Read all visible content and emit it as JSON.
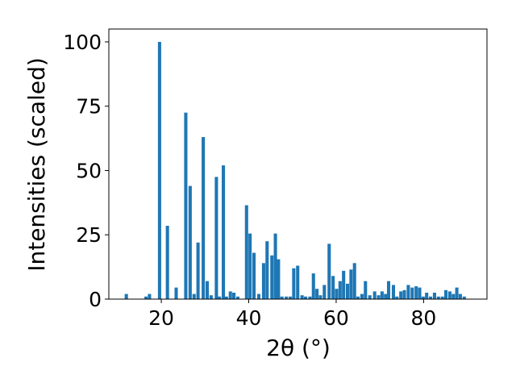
{
  "chart_data": {
    "type": "bar",
    "title": "",
    "xlabel": "2θ (°)",
    "ylabel": "Intensities (scaled)",
    "xlim": [
      8,
      94.5
    ],
    "ylim": [
      0,
      105
    ],
    "xticks": [
      20,
      40,
      60,
      80
    ],
    "yticks": [
      0,
      25,
      50,
      75,
      100
    ],
    "grid": false,
    "bar_color": "#1f77b4",
    "bar_width": 0.75,
    "x": [
      12.0,
      16.5,
      17.3,
      19.6,
      21.4,
      23.4,
      25.6,
      26.6,
      27.5,
      28.4,
      29.6,
      30.5,
      31.4,
      32.6,
      33.3,
      34.2,
      34.9,
      35.8,
      36.6,
      37.5,
      39.5,
      40.3,
      41.2,
      42.3,
      43.4,
      44.2,
      45.3,
      46.1,
      46.8,
      47.6,
      48.6,
      49.5,
      50.3,
      51.2,
      52.2,
      53.0,
      54.0,
      54.8,
      55.6,
      56.4,
      57.3,
      58.4,
      59.3,
      60.1,
      60.9,
      61.7,
      62.6,
      63.4,
      64.2,
      65.0,
      65.9,
      66.7,
      67.7,
      68.8,
      69.7,
      70.5,
      71.3,
      72.0,
      73.1,
      73.9,
      74.8,
      75.6,
      76.5,
      77.4,
      78.3,
      79.1,
      79.9,
      80.7,
      81.6,
      82.5,
      83.4,
      84.3,
      85.1,
      86.0,
      86.8,
      87.6,
      88.4,
      89.3
    ],
    "values": [
      2,
      1,
      2,
      100,
      28.5,
      4.5,
      72.5,
      44,
      2,
      22,
      63,
      7,
      1.5,
      47.5,
      1,
      52,
      1,
      3,
      2.5,
      1,
      36.5,
      25.5,
      18,
      2,
      14,
      22.5,
      17,
      25.5,
      15.5,
      1,
      1,
      1,
      12,
      13,
      1.5,
      1,
      1,
      10,
      4,
      1.5,
      5.5,
      21.5,
      9,
      4,
      7,
      11,
      6,
      11.5,
      14,
      1,
      2,
      7,
      1.5,
      3,
      1.5,
      3,
      2,
      7,
      5.5,
      1,
      3,
      3.5,
      5.5,
      4.5,
      5,
      4.5,
      1,
      2.5,
      1,
      2.5,
      1,
      1,
      3.5,
      3,
      2,
      4.5,
      2,
      1
    ]
  }
}
